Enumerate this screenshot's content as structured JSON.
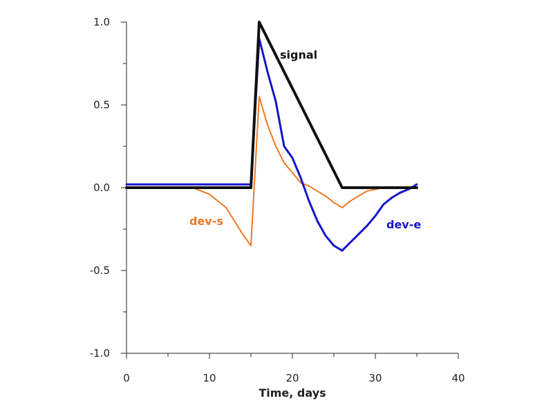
{
  "chart_data": {
    "type": "line",
    "title": "",
    "xlabel": "Time, days",
    "ylabel": "",
    "xlim": [
      0,
      40
    ],
    "ylim": [
      -1.0,
      1.0
    ],
    "x_ticks": [
      0,
      10,
      20,
      30,
      40
    ],
    "x_minor_ticks": [
      5,
      15,
      25,
      35
    ],
    "x_tick_labels": [
      "0",
      "10",
      "20",
      "30",
      "40"
    ],
    "y_ticks": [
      -1.0,
      -0.5,
      0.0,
      0.5,
      1.0
    ],
    "y_minor_ticks": [
      -0.75,
      -0.25,
      0.25,
      0.75
    ],
    "y_tick_labels": [
      "-1.0",
      "-0.5",
      "0.0",
      "0.5",
      "1.0"
    ],
    "grid": false,
    "legend": "none",
    "series": [
      {
        "name": "signal",
        "label": "signal",
        "color": "#111111",
        "width": 4,
        "points": [
          [
            0,
            0.0
          ],
          [
            15,
            0.0
          ],
          [
            16,
            1.0
          ],
          [
            26,
            0.0
          ],
          [
            35,
            0.0
          ]
        ]
      },
      {
        "name": "dev-e",
        "label": "dev-e",
        "color": "#1414c8",
        "width": 3,
        "points": [
          [
            0,
            0.02
          ],
          [
            15,
            0.02
          ],
          [
            16,
            0.9
          ],
          [
            17,
            0.7
          ],
          [
            18,
            0.52
          ],
          [
            19,
            0.25
          ],
          [
            20,
            0.18
          ],
          [
            21,
            0.06
          ],
          [
            22,
            -0.08
          ],
          [
            23,
            -0.2
          ],
          [
            24,
            -0.29
          ],
          [
            25,
            -0.35
          ],
          [
            26,
            -0.38
          ],
          [
            27,
            -0.33
          ],
          [
            28,
            -0.28
          ],
          [
            29,
            -0.23
          ],
          [
            30,
            -0.17
          ],
          [
            31,
            -0.1
          ],
          [
            32,
            -0.06
          ],
          [
            33,
            -0.03
          ],
          [
            34,
            -0.01
          ],
          [
            35,
            0.02
          ]
        ]
      },
      {
        "name": "dev-s",
        "label": "dev-s",
        "color": "#ee7722",
        "width": 2,
        "points": [
          [
            0,
            0.0
          ],
          [
            8,
            0.0
          ],
          [
            10,
            -0.04
          ],
          [
            12,
            -0.12
          ],
          [
            13,
            -0.2
          ],
          [
            14,
            -0.28
          ],
          [
            15,
            -0.35
          ],
          [
            16,
            0.55
          ],
          [
            17,
            0.38
          ],
          [
            18,
            0.25
          ],
          [
            19,
            0.15
          ],
          [
            20,
            0.09
          ],
          [
            21,
            0.03
          ],
          [
            22,
            0.01
          ],
          [
            23,
            -0.02
          ],
          [
            24,
            -0.05
          ],
          [
            25,
            -0.09
          ],
          [
            26,
            -0.12
          ],
          [
            27,
            -0.08
          ],
          [
            28,
            -0.05
          ],
          [
            29,
            -0.02
          ],
          [
            30,
            -0.01
          ],
          [
            31,
            0.0
          ],
          [
            35,
            0.0
          ]
        ]
      }
    ]
  }
}
